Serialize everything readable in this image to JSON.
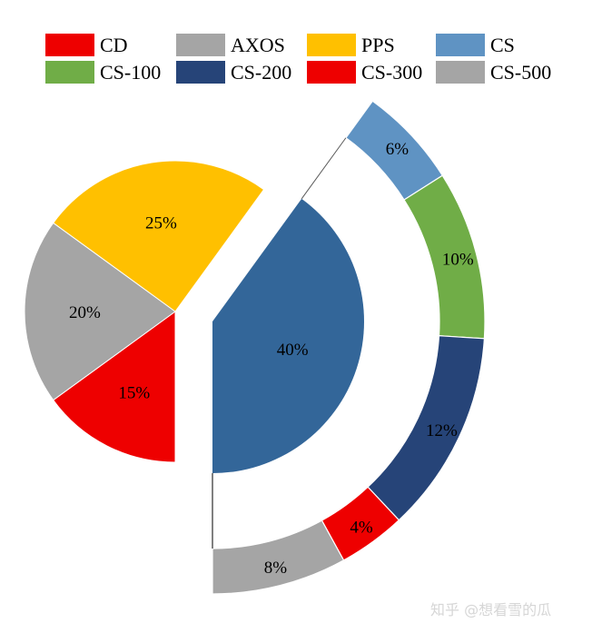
{
  "chart_data": {
    "type": "pie",
    "subtype": "pie-of-pie (exploded slice with breakdown ring)",
    "title": "",
    "legend_position": "top",
    "legend": [
      {
        "label": "CD",
        "color": "#ee0000"
      },
      {
        "label": "AXOS",
        "color": "#a5a5a5"
      },
      {
        "label": "PPS",
        "color": "#ffc000"
      },
      {
        "label": "CS",
        "color": "#5f93c3"
      },
      {
        "label": "CS-100",
        "color": "#70ad47"
      },
      {
        "label": "CS-200",
        "color": "#264478"
      },
      {
        "label": "CS-300",
        "color": "#ee0000"
      },
      {
        "label": "CS-500",
        "color": "#a5a5a5"
      }
    ],
    "main_pie": {
      "categories": [
        "CD",
        "AXOS",
        "PPS",
        "CS"
      ],
      "values": [
        15,
        20,
        25,
        40
      ],
      "labels": [
        "15%",
        "20%",
        "25%",
        "40%"
      ],
      "colors": [
        "#ee0000",
        "#a5a5a5",
        "#ffc000",
        "#336699"
      ],
      "exploded": "CS"
    },
    "breakdown_ring": {
      "parent": "CS",
      "categories": [
        "CS",
        "CS-100",
        "CS-200",
        "CS-300",
        "CS-500"
      ],
      "values": [
        6,
        10,
        12,
        4,
        8
      ],
      "labels": [
        "6%",
        "10%",
        "12%",
        "4%",
        "8%"
      ],
      "colors": [
        "#5f93c3",
        "#70ad47",
        "#264478",
        "#ee0000",
        "#a5a5a5"
      ]
    }
  },
  "watermark": "知乎 @想看雪的瓜"
}
